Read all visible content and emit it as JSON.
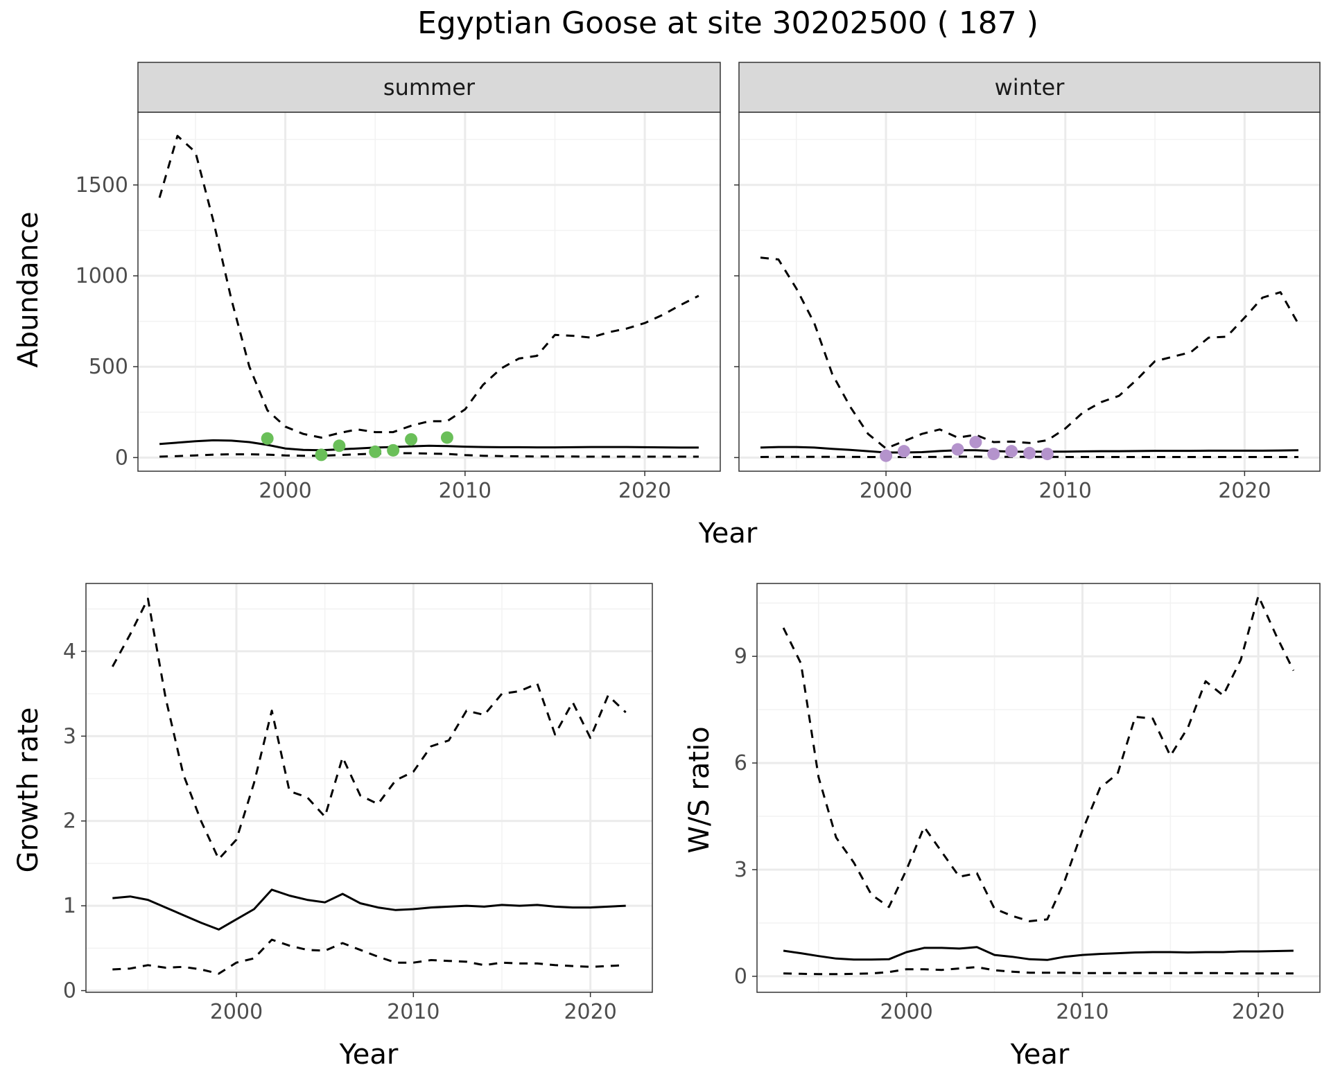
{
  "figure": {
    "title": "Egyptian Goose at site 30202500 ( 187 )"
  },
  "colors": {
    "summer_points": "#6abf59",
    "winter_points": "#b493cc",
    "lines": "#000000",
    "strip_bg": "#d9d9d9",
    "grid": "#ebebeb"
  },
  "chart_data": [
    {
      "type": "line",
      "panel": "summer",
      "strip_label": "summer",
      "ylabel": "Abundance",
      "xlabel": "Year",
      "xlim": [
        1991.8,
        2024.2
      ],
      "ylim": [
        -75,
        1900
      ],
      "xticks": [
        2000,
        2010,
        2020
      ],
      "yticks": [
        0,
        500,
        1000,
        1500
      ],
      "grid": true,
      "series": [
        {
          "style": "dashed",
          "x": [
            1993,
            1994,
            1995,
            1996,
            1997,
            1998,
            1999,
            2000,
            2001,
            2002,
            2003,
            2004,
            2005,
            2006,
            2007,
            2008,
            2009,
            2010,
            2011,
            2012,
            2013,
            2014,
            2015,
            2016,
            2017,
            2018,
            2019,
            2020,
            2021,
            2022,
            2023
          ],
          "values": [
            1430,
            1770,
            1680,
            1300,
            870,
            500,
            260,
            170,
            130,
            110,
            135,
            155,
            140,
            140,
            175,
            200,
            200,
            265,
            400,
            490,
            545,
            560,
            675,
            670,
            660,
            690,
            710,
            740,
            785,
            840,
            890
          ]
        },
        {
          "style": "solid",
          "x": [
            1993,
            1994,
            1995,
            1996,
            1997,
            1998,
            1999,
            2000,
            2001,
            2002,
            2003,
            2004,
            2005,
            2006,
            2007,
            2008,
            2009,
            2010,
            2011,
            2012,
            2013,
            2014,
            2015,
            2016,
            2017,
            2018,
            2019,
            2020,
            2021,
            2022,
            2023
          ],
          "values": [
            75,
            82,
            90,
            95,
            93,
            85,
            70,
            50,
            42,
            40,
            45,
            50,
            55,
            58,
            62,
            65,
            63,
            60,
            58,
            57,
            57,
            56,
            56,
            57,
            58,
            58,
            58,
            57,
            56,
            55,
            55
          ]
        },
        {
          "style": "dashed",
          "x": [
            1993,
            1994,
            1995,
            1996,
            1997,
            1998,
            1999,
            2000,
            2001,
            2002,
            2003,
            2004,
            2005,
            2006,
            2007,
            2008,
            2009,
            2010,
            2011,
            2012,
            2013,
            2014,
            2015,
            2016,
            2017,
            2018,
            2019,
            2020,
            2021,
            2022,
            2023
          ],
          "values": [
            5,
            8,
            12,
            16,
            18,
            18,
            16,
            12,
            10,
            10,
            14,
            18,
            22,
            24,
            24,
            22,
            20,
            14,
            10,
            8,
            7,
            6,
            6,
            6,
            5,
            5,
            5,
            5,
            5,
            5,
            5
          ]
        },
        {
          "style": "points",
          "x": [
            1999,
            2002,
            2003,
            2005,
            2006,
            2007,
            2009
          ],
          "values": [
            105,
            15,
            65,
            32,
            40,
            100,
            110
          ]
        }
      ]
    },
    {
      "type": "line",
      "panel": "winter",
      "strip_label": "winter",
      "ylabel": "Abundance",
      "xlabel": "Year",
      "xlim": [
        1991.8,
        2024.2
      ],
      "ylim": [
        -75,
        1900
      ],
      "xticks": [
        2000,
        2010,
        2020
      ],
      "yticks": [
        0,
        500,
        1000,
        1500
      ],
      "grid": true,
      "series": [
        {
          "style": "dashed",
          "x": [
            1993,
            1994,
            1995,
            1996,
            1997,
            1998,
            1999,
            2000,
            2001,
            2002,
            2003,
            2004,
            2005,
            2006,
            2007,
            2008,
            2009,
            2010,
            2011,
            2012,
            2013,
            2014,
            2015,
            2016,
            2017,
            2018,
            2019,
            2020,
            2021,
            2022,
            2023
          ],
          "values": [
            1100,
            1090,
            930,
            740,
            460,
            280,
            130,
            50,
            90,
            130,
            155,
            110,
            125,
            85,
            88,
            80,
            95,
            160,
            250,
            305,
            340,
            430,
            530,
            555,
            580,
            660,
            665,
            770,
            880,
            910,
            735
          ]
        },
        {
          "style": "solid",
          "x": [
            1993,
            1994,
            1995,
            1996,
            1997,
            1998,
            1999,
            2000,
            2001,
            2002,
            2003,
            2004,
            2005,
            2006,
            2007,
            2008,
            2009,
            2010,
            2011,
            2012,
            2013,
            2014,
            2015,
            2016,
            2017,
            2018,
            2019,
            2020,
            2021,
            2022,
            2023
          ],
          "values": [
            55,
            58,
            58,
            55,
            48,
            42,
            35,
            28,
            28,
            30,
            36,
            40,
            40,
            36,
            33,
            32,
            32,
            33,
            34,
            35,
            35,
            36,
            37,
            37,
            37,
            38,
            38,
            38,
            38,
            39,
            40
          ]
        },
        {
          "style": "dashed",
          "x": [
            1993,
            1994,
            1995,
            1996,
            1997,
            1998,
            1999,
            2000,
            2001,
            2002,
            2003,
            2004,
            2005,
            2006,
            2007,
            2008,
            2009,
            2010,
            2011,
            2012,
            2013,
            2014,
            2015,
            2016,
            2017,
            2018,
            2019,
            2020,
            2021,
            2022,
            2023
          ],
          "values": [
            3,
            4,
            4,
            4,
            4,
            4,
            3,
            3,
            3,
            3,
            4,
            5,
            5,
            4,
            4,
            4,
            4,
            3,
            3,
            3,
            3,
            3,
            3,
            3,
            3,
            3,
            3,
            3,
            3,
            3,
            3
          ]
        },
        {
          "style": "points",
          "x": [
            2000,
            2001,
            2004,
            2005,
            2006,
            2007,
            2008,
            2009
          ],
          "values": [
            10,
            35,
            45,
            85,
            20,
            35,
            25,
            20
          ]
        }
      ]
    },
    {
      "type": "line",
      "panel": "growth",
      "ylabel": "Growth rate",
      "xlabel": "Year",
      "xlim": [
        1991.5,
        2023.5
      ],
      "ylim": [
        -0.02,
        4.8
      ],
      "xticks": [
        2000,
        2010,
        2020
      ],
      "yticks": [
        0,
        1,
        2,
        3,
        4
      ],
      "grid": true,
      "series": [
        {
          "style": "dashed",
          "x": [
            1993,
            1994,
            1995,
            1996,
            1997,
            1998,
            1999,
            2000,
            2001,
            2002,
            2003,
            2004,
            2005,
            2006,
            2007,
            2008,
            2009,
            2010,
            2011,
            2012,
            2013,
            2014,
            2015,
            2016,
            2017,
            2018,
            2019,
            2020,
            2021,
            2022
          ],
          "values": [
            3.82,
            4.2,
            4.62,
            3.45,
            2.55,
            2.0,
            1.55,
            1.78,
            2.45,
            3.3,
            2.35,
            2.28,
            2.05,
            2.75,
            2.3,
            2.2,
            2.48,
            2.58,
            2.88,
            2.95,
            3.3,
            3.25,
            3.5,
            3.53,
            3.62,
            3.02,
            3.4,
            2.98,
            3.48,
            3.28
          ]
        },
        {
          "style": "solid",
          "x": [
            1993,
            1994,
            1995,
            1996,
            1997,
            1998,
            1999,
            2000,
            2001,
            2002,
            2003,
            2004,
            2005,
            2006,
            2007,
            2008,
            2009,
            2010,
            2011,
            2012,
            2013,
            2014,
            2015,
            2016,
            2017,
            2018,
            2019,
            2020,
            2021,
            2022
          ],
          "values": [
            1.09,
            1.11,
            1.07,
            0.98,
            0.89,
            0.8,
            0.72,
            0.84,
            0.96,
            1.19,
            1.12,
            1.07,
            1.04,
            1.14,
            1.03,
            0.98,
            0.95,
            0.96,
            0.98,
            0.99,
            1.0,
            0.99,
            1.01,
            1.0,
            1.01,
            0.99,
            0.98,
            0.98,
            0.99,
            1.0
          ]
        },
        {
          "style": "dashed",
          "x": [
            1993,
            1994,
            1995,
            1996,
            1997,
            1998,
            1999,
            2000,
            2001,
            2002,
            2003,
            2004,
            2005,
            2006,
            2007,
            2008,
            2009,
            2010,
            2011,
            2012,
            2013,
            2014,
            2015,
            2016,
            2017,
            2018,
            2019,
            2020,
            2021,
            2022
          ],
          "values": [
            0.25,
            0.26,
            0.3,
            0.27,
            0.28,
            0.25,
            0.2,
            0.33,
            0.38,
            0.6,
            0.53,
            0.48,
            0.47,
            0.56,
            0.48,
            0.4,
            0.33,
            0.33,
            0.36,
            0.35,
            0.34,
            0.3,
            0.33,
            0.32,
            0.32,
            0.3,
            0.29,
            0.28,
            0.29,
            0.3
          ]
        }
      ]
    },
    {
      "type": "line",
      "panel": "ratio",
      "ylabel": "W/S ratio",
      "xlabel": "Year",
      "xlim": [
        1991.5,
        2023.5
      ],
      "ylim": [
        -0.45,
        11.05
      ],
      "xticks": [
        2000,
        2010,
        2020
      ],
      "yticks": [
        0,
        3,
        6,
        9
      ],
      "grid": true,
      "series": [
        {
          "style": "dashed",
          "x": [
            1993,
            1994,
            1995,
            1996,
            1997,
            1998,
            1999,
            2000,
            2001,
            2002,
            2003,
            2004,
            2005,
            2006,
            2007,
            2008,
            2009,
            2010,
            2011,
            2012,
            2013,
            2014,
            2015,
            2016,
            2017,
            2018,
            2019,
            2020,
            2021,
            2022
          ],
          "values": [
            9.8,
            8.8,
            5.6,
            3.9,
            3.2,
            2.3,
            1.95,
            3.0,
            4.2,
            3.5,
            2.8,
            2.9,
            1.9,
            1.7,
            1.55,
            1.6,
            2.7,
            4.1,
            5.3,
            5.7,
            7.3,
            7.25,
            6.2,
            7.0,
            8.3,
            7.9,
            8.9,
            10.7,
            9.6,
            8.6
          ]
        },
        {
          "style": "solid",
          "x": [
            1993,
            1994,
            1995,
            1996,
            1997,
            1998,
            1999,
            2000,
            2001,
            2002,
            2003,
            2004,
            2005,
            2006,
            2007,
            2008,
            2009,
            2010,
            2011,
            2012,
            2013,
            2014,
            2015,
            2016,
            2017,
            2018,
            2019,
            2020,
            2021,
            2022
          ],
          "values": [
            0.72,
            0.65,
            0.57,
            0.5,
            0.47,
            0.47,
            0.48,
            0.68,
            0.8,
            0.8,
            0.78,
            0.82,
            0.6,
            0.55,
            0.48,
            0.46,
            0.55,
            0.6,
            0.63,
            0.65,
            0.67,
            0.68,
            0.68,
            0.67,
            0.68,
            0.68,
            0.7,
            0.7,
            0.71,
            0.72
          ]
        },
        {
          "style": "dashed",
          "x": [
            1993,
            1994,
            1995,
            1996,
            1997,
            1998,
            1999,
            2000,
            2001,
            2002,
            2003,
            2004,
            2005,
            2006,
            2007,
            2008,
            2009,
            2010,
            2011,
            2012,
            2013,
            2014,
            2015,
            2016,
            2017,
            2018,
            2019,
            2020,
            2021,
            2022
          ],
          "values": [
            0.08,
            0.07,
            0.06,
            0.06,
            0.07,
            0.08,
            0.12,
            0.2,
            0.2,
            0.18,
            0.22,
            0.26,
            0.17,
            0.13,
            0.1,
            0.1,
            0.1,
            0.09,
            0.09,
            0.09,
            0.09,
            0.09,
            0.09,
            0.09,
            0.09,
            0.09,
            0.08,
            0.08,
            0.08,
            0.08
          ]
        }
      ]
    }
  ]
}
